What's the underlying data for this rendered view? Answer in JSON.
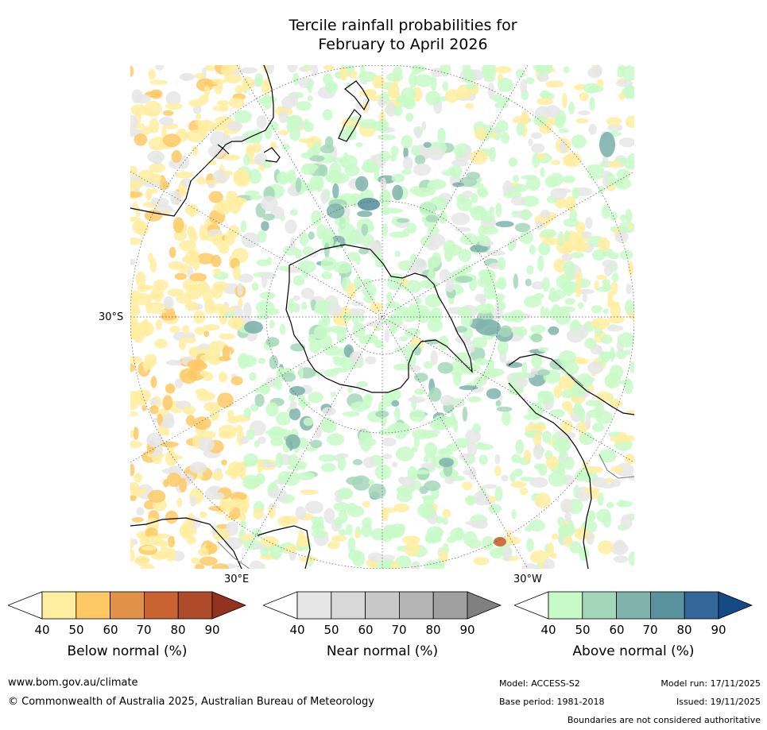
{
  "title": {
    "line1": "Tercile rainfall probabilities for",
    "line2": "February to April 2026"
  },
  "map": {
    "lat_label": "30°S",
    "lon_label_east": "30°E",
    "lon_label_west": "30°W"
  },
  "colorbars": [
    {
      "label": "Below normal (%)",
      "ticks": [
        "40",
        "50",
        "60",
        "70",
        "80",
        "90"
      ],
      "colors": [
        "#ffffff",
        "#ffeda0",
        "#fec965",
        "#df9248",
        "#c96332",
        "#ae4b28",
        "#92321f"
      ]
    },
    {
      "label": "Near normal (%)",
      "ticks": [
        "40",
        "50",
        "60",
        "70",
        "80",
        "90"
      ],
      "colors": [
        "#ffffff",
        "#e6e6e6",
        "#d8d8d8",
        "#c8c8c8",
        "#b4b4b4",
        "#a0a0a0",
        "#808080"
      ]
    },
    {
      "label": "Above normal (%)",
      "ticks": [
        "40",
        "50",
        "60",
        "70",
        "80",
        "90"
      ],
      "colors": [
        "#ffffff",
        "#c8fac8",
        "#a4d7ba",
        "#7fb3ac",
        "#5a929e",
        "#336699",
        "#154a84"
      ]
    }
  ],
  "footer": {
    "website": "www.bom.gov.au/climate",
    "copyright": "© Commonwealth of Australia 2025, Australian Bureau of Meteorology",
    "model": "Model: ACCESS-S2",
    "model_run": "Model run: 17/11/2025",
    "base_period": "Base period: 1981-2018",
    "issued": "Issued: 19/11/2025",
    "boundaries": "Boundaries are not considered authoritative"
  }
}
